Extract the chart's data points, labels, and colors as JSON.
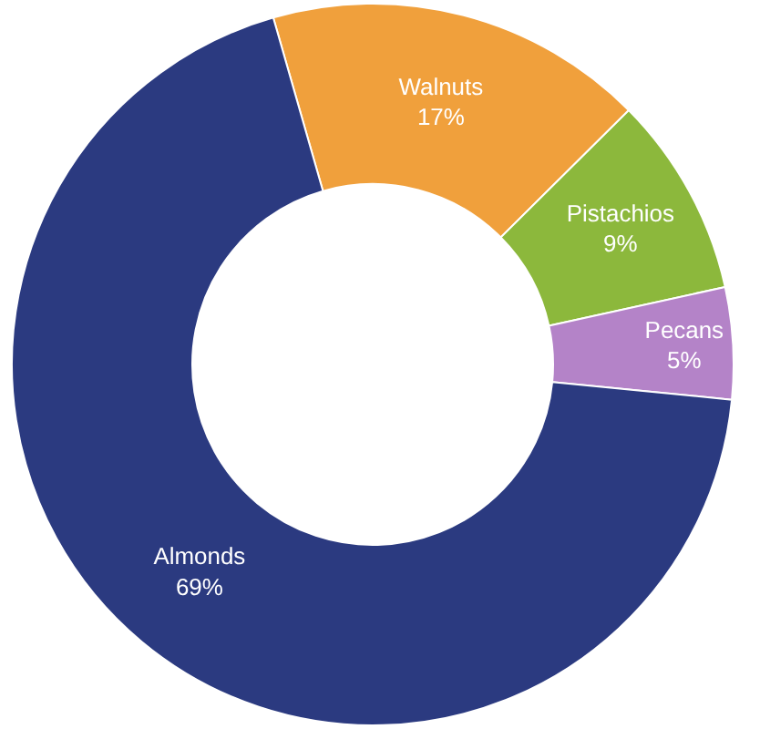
{
  "chart_data": {
    "type": "donut",
    "categories": [
      "Walnuts",
      "Pistachios",
      "Pecans",
      "Almonds"
    ],
    "values": [
      17,
      9,
      5,
      69
    ],
    "value_labels": [
      "17%",
      "9%",
      "5%",
      "69%"
    ],
    "colors": [
      "#f0a03c",
      "#8cb83c",
      "#b483c8",
      "#2b3a80"
    ],
    "legend": false
  }
}
